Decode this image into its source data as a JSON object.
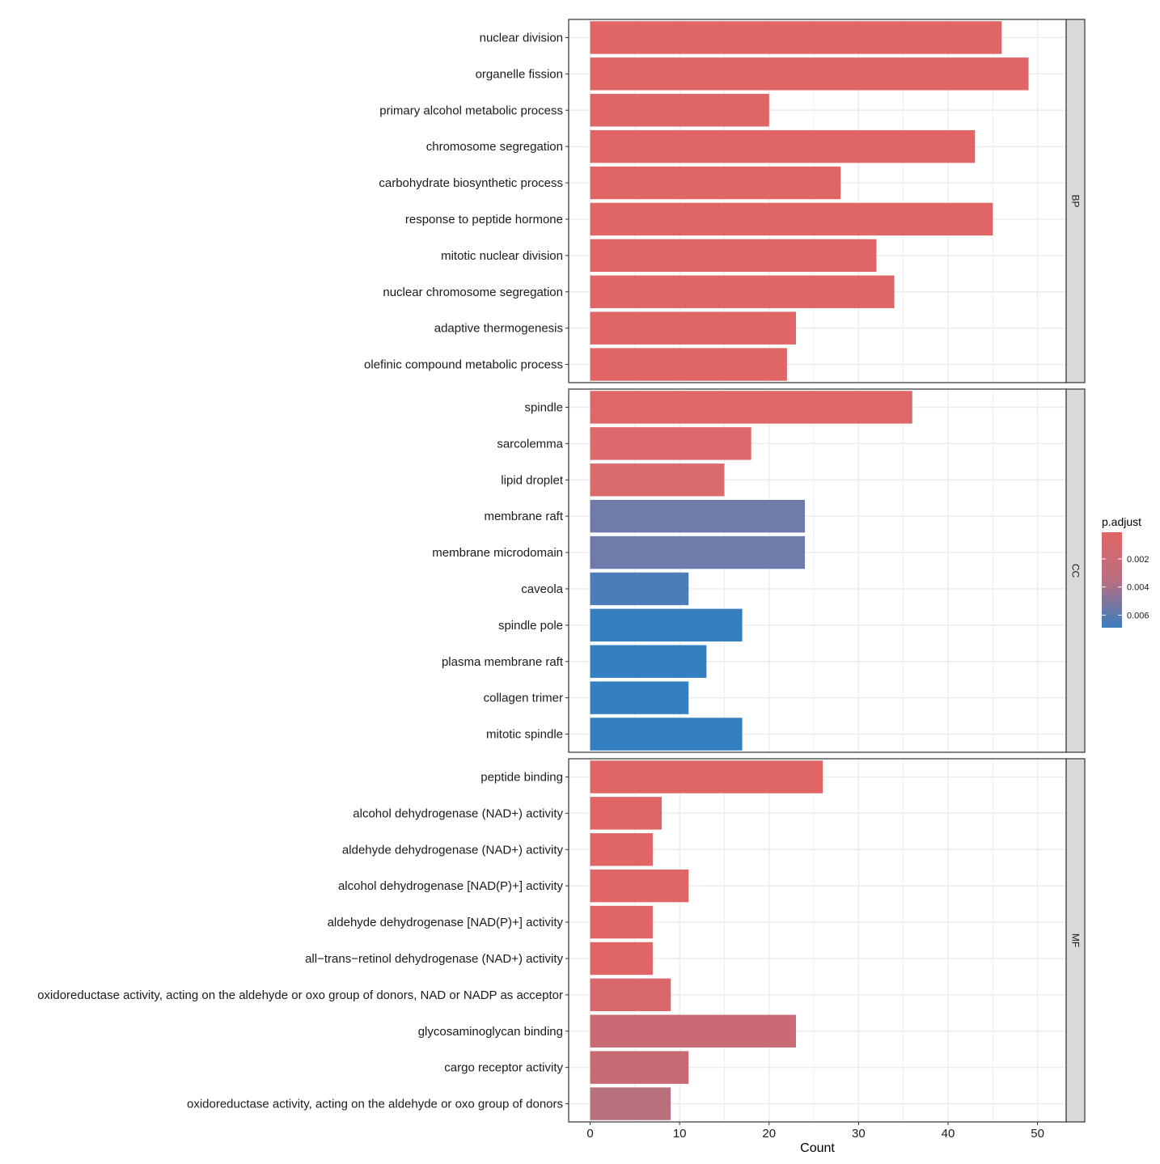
{
  "chart_data": {
    "type": "bar",
    "orientation": "horizontal",
    "xlabel": "Count",
    "xlim": [
      -2.4,
      53.2
    ],
    "xticks": [
      0,
      10,
      20,
      30,
      40,
      50
    ],
    "xtick_labels": [
      "0",
      "10",
      "20",
      "30",
      "40",
      "50"
    ],
    "grid": true,
    "legend": {
      "title": "p.adjust",
      "placement": "right",
      "ticks": [
        0.002,
        0.004,
        0.006
      ],
      "tick_labels": [
        "0.002",
        "0.004",
        "0.006"
      ],
      "color_low": "#E06666",
      "color_mid": "#B96F80",
      "color_high": "#3A7DBF",
      "range": [
        0.0001,
        0.0069
      ]
    },
    "colors": {
      "panel_border": "#333333",
      "grid": "#ebebeb",
      "strip_fill": "#d9d9d9"
    },
    "facets": [
      {
        "name": "BP",
        "categories": [
          "nuclear division",
          "organelle fission",
          "primary alcohol metabolic process",
          "chromosome segregation",
          "carbohydrate biosynthetic process",
          "response to peptide hormone",
          "mitotic nuclear division",
          "nuclear chromosome segregation",
          "adaptive thermogenesis",
          "olefinic compound metabolic process"
        ],
        "values": [
          46,
          49,
          20,
          43,
          28,
          45,
          32,
          34,
          23,
          22
        ],
        "colors": [
          "#E06666",
          "#E06666",
          "#E06666",
          "#E06666",
          "#E06666",
          "#E06666",
          "#E06666",
          "#E06666",
          "#E06666",
          "#E06666"
        ]
      },
      {
        "name": "CC",
        "categories": [
          "spindle",
          "sarcolemma",
          "lipid droplet",
          "membrane raft",
          "membrane microdomain",
          "caveola",
          "spindle pole",
          "plasma membrane raft",
          "collagen trimer",
          "mitotic spindle"
        ],
        "values": [
          36,
          18,
          15,
          24,
          24,
          11,
          17,
          13,
          11,
          17
        ],
        "colors": [
          "#DD686A",
          "#DC696B",
          "#DB6A6C",
          "#6F7BAA",
          "#6F7BAA",
          "#4D7DB6",
          "#357FBF",
          "#347FBF",
          "#337FBF",
          "#337FBF"
        ]
      },
      {
        "name": "MF",
        "categories": [
          "peptide binding",
          "alcohol dehydrogenase (NAD+) activity",
          "aldehyde dehydrogenase (NAD+) activity",
          "alcohol dehydrogenase [NAD(P)+] activity",
          "aldehyde dehydrogenase [NAD(P)+] activity",
          "all−trans−retinol dehydrogenase (NAD+) activity",
          "oxidoreductase activity, acting on the aldehyde or oxo group of donors, NAD or NADP as acceptor",
          "glycosaminoglycan binding",
          "cargo receptor activity",
          "oxidoreductase activity, acting on the aldehyde or oxo group of donors"
        ],
        "values": [
          26,
          8,
          7,
          11,
          7,
          7,
          9,
          23,
          11,
          9
        ],
        "colors": [
          "#E06666",
          "#E06666",
          "#E06666",
          "#E06666",
          "#E06666",
          "#E06666",
          "#D8686C",
          "#C96A74",
          "#C86A74",
          "#B8707F"
        ]
      }
    ]
  }
}
